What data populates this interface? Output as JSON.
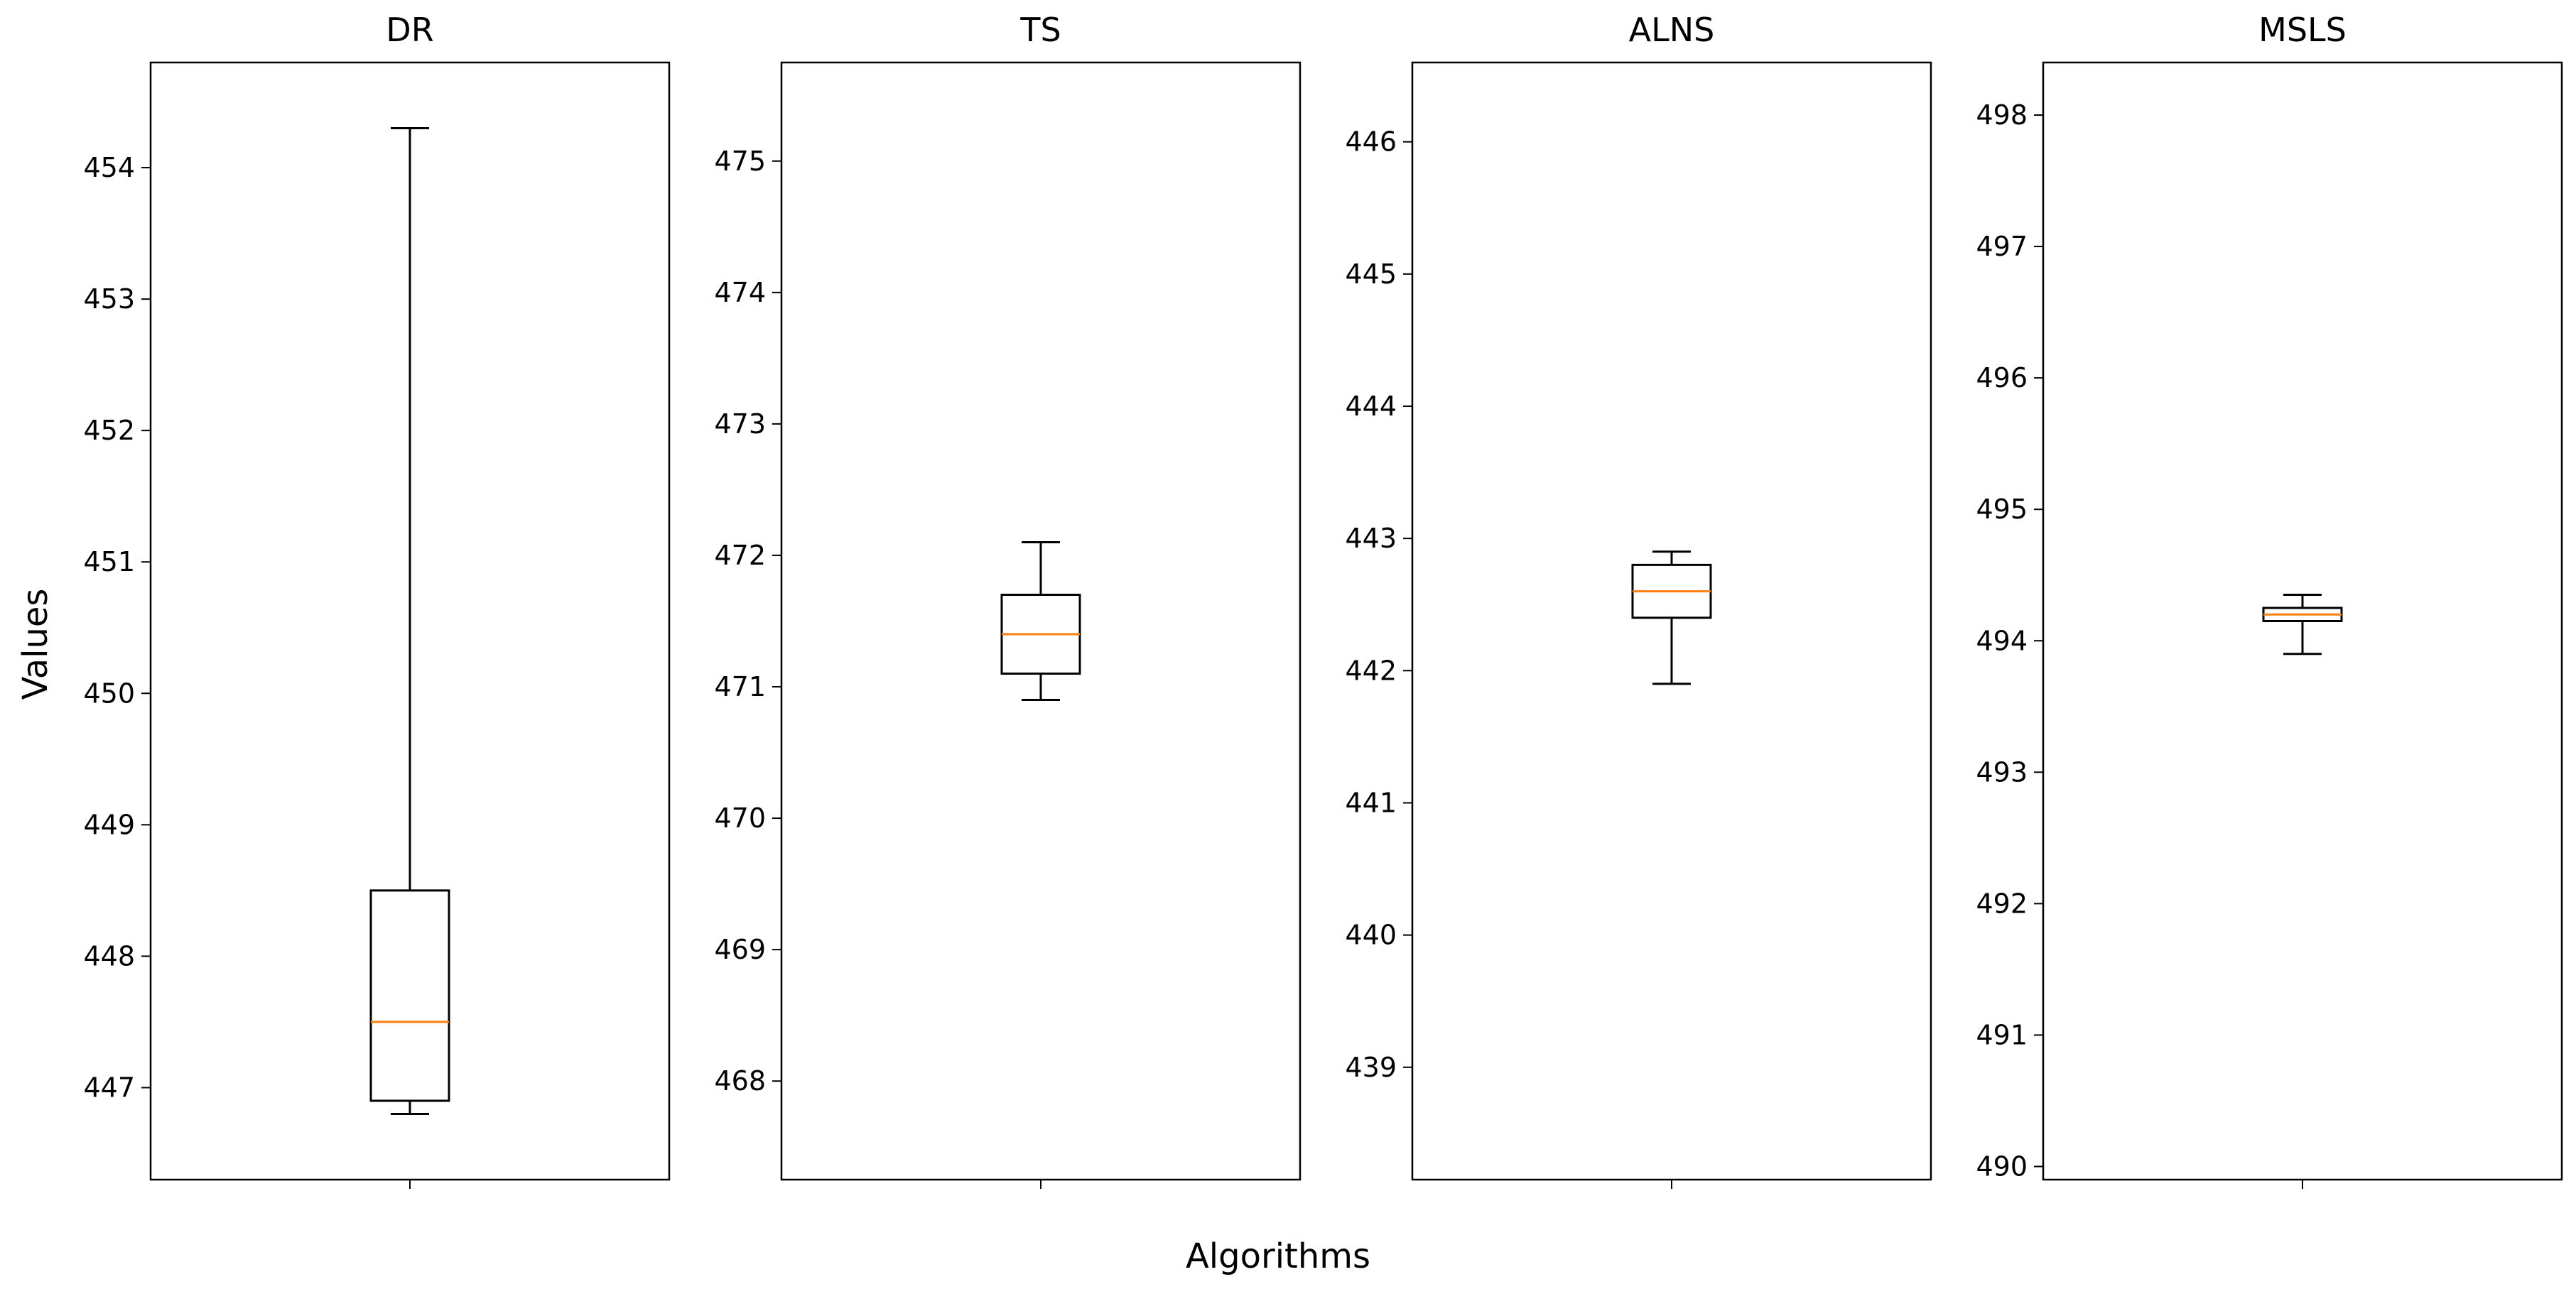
{
  "chart_data": {
    "type": "box",
    "xlabel": "Algorithms",
    "ylabel": "Values",
    "panels": [
      {
        "title": "DR",
        "ylim": [
          446.3,
          454.8
        ],
        "yticks": [
          447,
          448,
          449,
          450,
          451,
          452,
          453,
          454
        ],
        "stats": {
          "whislo": 446.8,
          "q1": 446.9,
          "med": 447.5,
          "q3": 448.5,
          "whishi": 454.3
        },
        "colors": {
          "median": "#ff7f0e",
          "box": "#000000"
        }
      },
      {
        "title": "TS",
        "ylim": [
          467.25,
          475.75
        ],
        "yticks": [
          468,
          469,
          470,
          471,
          472,
          473,
          474,
          475
        ],
        "stats": {
          "whislo": 470.9,
          "q1": 471.1,
          "med": 471.4,
          "q3": 471.7,
          "whishi": 472.1
        },
        "colors": {
          "median": "#ff7f0e",
          "box": "#000000"
        }
      },
      {
        "title": "ALNS",
        "ylim": [
          438.15,
          446.6
        ],
        "yticks": [
          439,
          440,
          441,
          442,
          443,
          444,
          445,
          446
        ],
        "stats": {
          "whislo": 441.9,
          "q1": 442.4,
          "med": 442.6,
          "q3": 442.8,
          "whishi": 442.9
        },
        "colors": {
          "median": "#ff7f0e",
          "box": "#000000"
        }
      },
      {
        "title": "MSLS",
        "ylim": [
          489.9,
          498.4
        ],
        "yticks": [
          490,
          491,
          492,
          493,
          494,
          495,
          496,
          497,
          498
        ],
        "stats": {
          "whislo": 493.9,
          "q1": 494.15,
          "med": 494.2,
          "q3": 494.25,
          "whishi": 494.35
        },
        "colors": {
          "median": "#ff7f0e",
          "box": "#000000"
        }
      }
    ]
  }
}
